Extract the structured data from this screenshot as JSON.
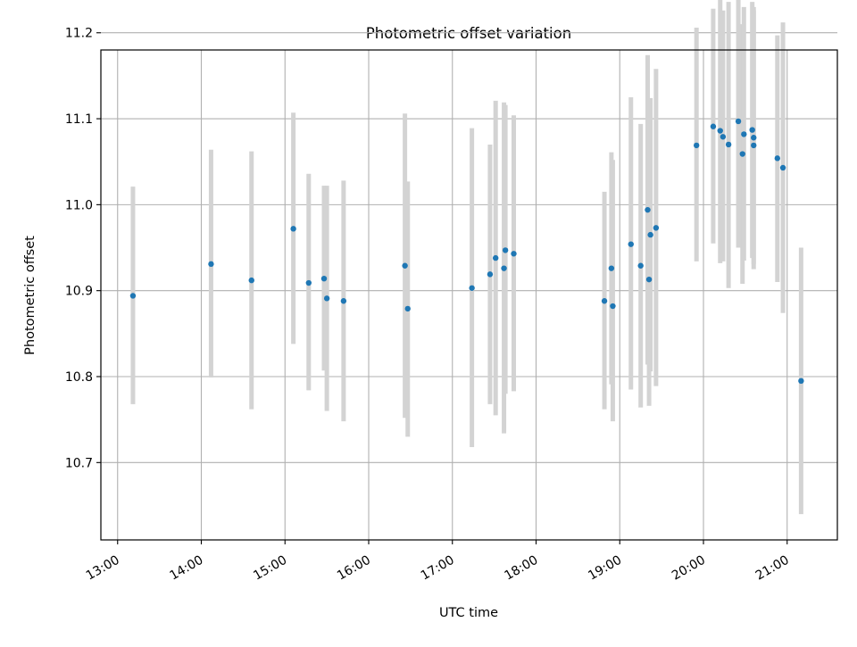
{
  "chart_data": {
    "type": "scatter",
    "title": "Photometric offset variation",
    "xlabel": "UTC time",
    "ylabel": "Photometric offset",
    "xlim": [
      "12:48",
      "21:36"
    ],
    "ylim": [
      10.61,
      11.18
    ],
    "xticks": [
      "13:00",
      "14:00",
      "15:00",
      "16:00",
      "17:00",
      "18:00",
      "19:00",
      "20:00",
      "21:00"
    ],
    "yticks": [
      "10.7",
      "10.8",
      "10.9",
      "11.0",
      "11.1",
      "11.2"
    ],
    "grid": true,
    "colors": {
      "point": "#1f77b4",
      "errorbar": "#d3d3d3",
      "grid": "#b0b0b0"
    },
    "points": [
      {
        "t": "13:11",
        "y": 10.894,
        "lo": 10.768,
        "hi": 11.021
      },
      {
        "t": "14:07",
        "y": 10.931,
        "lo": 10.799,
        "hi": 11.064
      },
      {
        "t": "14:36",
        "y": 10.912,
        "lo": 10.762,
        "hi": 11.062
      },
      {
        "t": "15:06",
        "y": 10.972,
        "lo": 10.838,
        "hi": 11.107
      },
      {
        "t": "15:17",
        "y": 10.909,
        "lo": 10.784,
        "hi": 11.036
      },
      {
        "t": "15:28",
        "y": 10.914,
        "lo": 10.807,
        "hi": 11.022
      },
      {
        "t": "15:30",
        "y": 10.891,
        "lo": 10.76,
        "hi": 11.022
      },
      {
        "t": "15:42",
        "y": 10.888,
        "lo": 10.748,
        "hi": 11.028
      },
      {
        "t": "16:26",
        "y": 10.929,
        "lo": 10.752,
        "hi": 11.106
      },
      {
        "t": "16:28",
        "y": 10.879,
        "lo": 10.73,
        "hi": 11.027
      },
      {
        "t": "17:14",
        "y": 10.903,
        "lo": 10.718,
        "hi": 11.089
      },
      {
        "t": "17:27",
        "y": 10.919,
        "lo": 10.768,
        "hi": 11.07
      },
      {
        "t": "17:31",
        "y": 10.938,
        "lo": 10.755,
        "hi": 11.121
      },
      {
        "t": "17:37",
        "y": 10.926,
        "lo": 10.734,
        "hi": 11.119
      },
      {
        "t": "17:38",
        "y": 10.947,
        "lo": 10.78,
        "hi": 11.116
      },
      {
        "t": "17:44",
        "y": 10.943,
        "lo": 10.783,
        "hi": 11.104
      },
      {
        "t": "18:49",
        "y": 10.888,
        "lo": 10.762,
        "hi": 11.015
      },
      {
        "t": "18:54",
        "y": 10.926,
        "lo": 10.791,
        "hi": 11.061
      },
      {
        "t": "18:55",
        "y": 10.882,
        "lo": 10.748,
        "hi": 11.052
      },
      {
        "t": "19:08",
        "y": 10.954,
        "lo": 10.785,
        "hi": 11.125
      },
      {
        "t": "19:15",
        "y": 10.929,
        "lo": 10.764,
        "hi": 11.094
      },
      {
        "t": "19:20",
        "y": 10.994,
        "lo": 10.814,
        "hi": 11.174
      },
      {
        "t": "19:21",
        "y": 10.913,
        "lo": 10.766,
        "hi": 11.062
      },
      {
        "t": "19:22",
        "y": 10.965,
        "lo": 10.806,
        "hi": 11.124
      },
      {
        "t": "19:26",
        "y": 10.973,
        "lo": 10.789,
        "hi": 11.158
      },
      {
        "t": "19:55",
        "y": 11.069,
        "lo": 10.934,
        "hi": 11.206
      },
      {
        "t": "20:07",
        "y": 11.091,
        "lo": 10.955,
        "hi": 11.228
      },
      {
        "t": "20:12",
        "y": 11.086,
        "lo": 10.932,
        "hi": 11.242
      },
      {
        "t": "20:14",
        "y": 11.079,
        "lo": 10.934,
        "hi": 11.226
      },
      {
        "t": "20:18",
        "y": 11.07,
        "lo": 10.903,
        "hi": 11.236
      },
      {
        "t": "20:25",
        "y": 11.097,
        "lo": 10.95,
        "hi": 11.246
      },
      {
        "t": "20:28",
        "y": 11.059,
        "lo": 10.908,
        "hi": 11.21
      },
      {
        "t": "20:29",
        "y": 11.082,
        "lo": 10.935,
        "hi": 11.23
      },
      {
        "t": "20:35",
        "y": 11.087,
        "lo": 10.938,
        "hi": 11.236
      },
      {
        "t": "20:36",
        "y": 11.069,
        "lo": 10.925,
        "hi": 11.23
      },
      {
        "t": "20:36",
        "y": 11.078,
        "lo": 10.931,
        "hi": 11.226
      },
      {
        "t": "20:53",
        "y": 11.054,
        "lo": 10.91,
        "hi": 11.197
      },
      {
        "t": "20:57",
        "y": 11.043,
        "lo": 10.874,
        "hi": 11.212
      },
      {
        "t": "21:10",
        "y": 10.795,
        "lo": 10.64,
        "hi": 10.95
      }
    ]
  }
}
